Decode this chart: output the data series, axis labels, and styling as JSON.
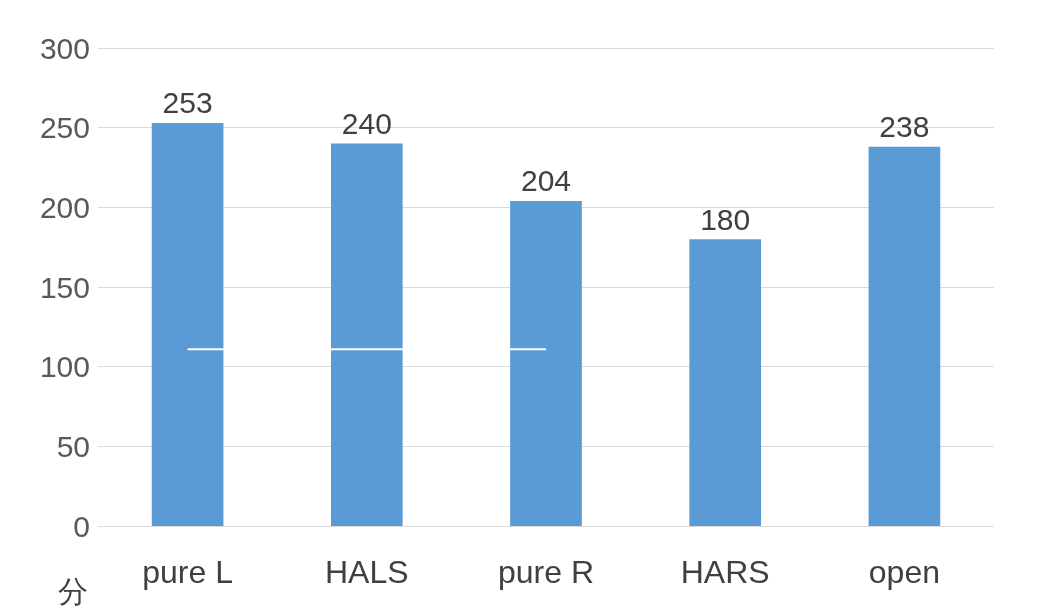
{
  "chart_data": {
    "type": "bar",
    "ylabel": "分",
    "categories": [
      "pure L",
      "HALS",
      "pure R",
      "HARS",
      "open"
    ],
    "series": [
      {
        "color": "#5b9bd5",
        "values": [
          253,
          240,
          204,
          180,
          238
        ],
        "value_labels": [
          "253",
          "240",
          "204",
          "180",
          "238"
        ]
      },
      {
        "type": "line",
        "color": "#ffffff",
        "values": [
          111,
          111,
          111,
          null,
          null
        ]
      }
    ],
    "ylim": [
      0,
      300
    ],
    "yticks": [
      0,
      50,
      100,
      150,
      200,
      250,
      300
    ],
    "grid": "y",
    "marker": "none"
  }
}
